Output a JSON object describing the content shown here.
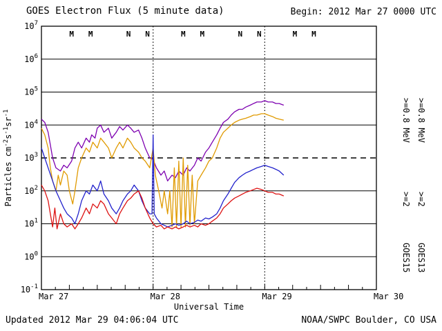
{
  "header": {
    "begin": "Begin: 2012 Mar 27 0000 UTC"
  },
  "footer": {
    "updated": "Updated 2012 Mar 29 04:06:04 UTC",
    "credit": "NOAA/SWPC Boulder, CO USA"
  },
  "chart_data": {
    "type": "line",
    "title": "GOES Electron Flux (5 minute data)",
    "xlabel": "Universal Time",
    "ylabel_parts": [
      [
        "Particles cm",
        false
      ],
      [
        "-2",
        true
      ],
      [
        "s",
        false
      ],
      [
        "-1",
        true
      ],
      [
        "sr",
        false
      ],
      [
        "-1",
        true
      ]
    ],
    "x_ticks": [
      {
        "label": "Mar 27",
        "day": 0
      },
      {
        "label": "Mar 28",
        "day": 1
      },
      {
        "label": "Mar 29",
        "day": 2
      },
      {
        "label": "Mar 30",
        "day": 3
      }
    ],
    "y_exponents": [
      7,
      6,
      5,
      4,
      3,
      2,
      1,
      0,
      -1
    ],
    "xlim_days": [
      0,
      3
    ],
    "ylog_range": [
      -1,
      7
    ],
    "ylim": [
      0.1,
      10000000
    ],
    "grid": true,
    "threshold_exponent": 3,
    "day_boundaries": [
      1,
      2
    ],
    "top_markers": [
      {
        "label": "M",
        "color": "#dd1111",
        "x": 0.27
      },
      {
        "label": "M",
        "color": "#2222cc",
        "x": 0.44
      },
      {
        "label": "N",
        "color": "#dd1111",
        "x": 0.78
      },
      {
        "label": "N",
        "color": "#2222cc",
        "x": 0.95
      },
      {
        "label": "M",
        "color": "#dd1111",
        "x": 1.27
      },
      {
        "label": "M",
        "color": "#2222cc",
        "x": 1.44
      },
      {
        "label": "N",
        "color": "#dd1111",
        "x": 1.78
      },
      {
        "label": "N",
        "color": "#2222cc",
        "x": 1.95
      },
      {
        "label": "M",
        "color": "#dd1111",
        "x": 2.27
      },
      {
        "label": "M",
        "color": "#2222cc",
        "x": 2.44
      }
    ],
    "right_legend": [
      {
        "satellite": "GOES15",
        "energy_high": ">=0.8 MeV",
        "color_high": "#7d00b0",
        "energy_low": ">=2",
        "color_low": "#2222cc"
      },
      {
        "satellite": "GOES13",
        "energy_high": ">=0.8 MeV",
        "color_high": "#e09a00",
        "energy_low": ">=2",
        "color_low": "#dd1111"
      }
    ],
    "series": [
      {
        "name": "GOES15 >=0.8 MeV",
        "color": "#7d00b0",
        "x": [
          0.0,
          0.03,
          0.06,
          0.1,
          0.13,
          0.17,
          0.2,
          0.23,
          0.27,
          0.3,
          0.33,
          0.36,
          0.4,
          0.43,
          0.45,
          0.48,
          0.5,
          0.53,
          0.56,
          0.6,
          0.63,
          0.67,
          0.7,
          0.73,
          0.77,
          0.8,
          0.83,
          0.87,
          0.9,
          0.93,
          0.97,
          1.0,
          1.03,
          1.07,
          1.1,
          1.13,
          1.17,
          1.2,
          1.23,
          1.27,
          1.3,
          1.33,
          1.37,
          1.4,
          1.43,
          1.47,
          1.5,
          1.53,
          1.57,
          1.6,
          1.63,
          1.67,
          1.7,
          1.73,
          1.77,
          1.8,
          1.83,
          1.87,
          1.9,
          1.93,
          1.97,
          2.0,
          2.03,
          2.07,
          2.1,
          2.13,
          2.17
        ],
        "y": [
          15000,
          12000,
          6000,
          1000,
          500,
          400,
          600,
          500,
          800,
          2000,
          3000,
          2000,
          4000,
          3000,
          5000,
          4000,
          8000,
          10000,
          6000,
          8000,
          4000,
          6000,
          9000,
          7000,
          10000,
          8000,
          6000,
          7000,
          4000,
          2000,
          1000,
          900,
          500,
          300,
          400,
          200,
          300,
          250,
          400,
          300,
          500,
          400,
          600,
          1000,
          800,
          1500,
          2000,
          3000,
          5000,
          8000,
          12000,
          15000,
          20000,
          25000,
          30000,
          30000,
          35000,
          40000,
          45000,
          50000,
          50000,
          55000,
          50000,
          50000,
          45000,
          45000,
          40000
        ]
      },
      {
        "name": "GOES13 >=0.8 MeV",
        "color": "#e09a00",
        "x": [
          0.0,
          0.03,
          0.06,
          0.08,
          0.1,
          0.13,
          0.15,
          0.17,
          0.2,
          0.23,
          0.25,
          0.28,
          0.3,
          0.33,
          0.36,
          0.4,
          0.43,
          0.46,
          0.5,
          0.53,
          0.56,
          0.6,
          0.63,
          0.67,
          0.7,
          0.73,
          0.77,
          0.8,
          0.83,
          0.87,
          0.9,
          0.93,
          0.97,
          1.0,
          1.02,
          1.05,
          1.08,
          1.1,
          1.13,
          1.15,
          1.17,
          1.19,
          1.21,
          1.23,
          1.25,
          1.27,
          1.29,
          1.31,
          1.33,
          1.35,
          1.37,
          1.4,
          1.43,
          1.47,
          1.5,
          1.53,
          1.57,
          1.6,
          1.63,
          1.67,
          1.7,
          1.73,
          1.77,
          1.8,
          1.83,
          1.87,
          1.9,
          1.93,
          1.97,
          2.0,
          2.03,
          2.07,
          2.1,
          2.13,
          2.17
        ],
        "y": [
          8000,
          5000,
          2000,
          500,
          200,
          100,
          300,
          150,
          400,
          300,
          100,
          40,
          100,
          500,
          1000,
          2000,
          1500,
          3000,
          2000,
          4000,
          3000,
          2000,
          1000,
          2000,
          3000,
          2000,
          4000,
          3000,
          2000,
          1500,
          1000,
          800,
          500,
          2000,
          300,
          100,
          30,
          100,
          20,
          100,
          8,
          500,
          8,
          800,
          8,
          1000,
          8,
          600,
          9,
          300,
          10,
          200,
          300,
          500,
          800,
          1000,
          2000,
          4000,
          6000,
          8000,
          10000,
          12000,
          14000,
          15000,
          16000,
          18000,
          20000,
          20000,
          22000,
          22000,
          20000,
          18000,
          16000,
          15000,
          14000
        ]
      },
      {
        "name": "GOES15 >=2 MeV",
        "color": "#2222cc",
        "x": [
          0.0,
          0.03,
          0.06,
          0.1,
          0.13,
          0.17,
          0.2,
          0.23,
          0.27,
          0.3,
          0.33,
          0.36,
          0.4,
          0.43,
          0.46,
          0.5,
          0.53,
          0.56,
          0.6,
          0.63,
          0.67,
          0.7,
          0.73,
          0.77,
          0.8,
          0.83,
          0.87,
          0.9,
          0.93,
          0.97,
          0.99,
          1.0,
          1.01,
          1.03,
          1.07,
          1.1,
          1.13,
          1.17,
          1.2,
          1.23,
          1.27,
          1.3,
          1.33,
          1.37,
          1.4,
          1.43,
          1.47,
          1.5,
          1.53,
          1.57,
          1.6,
          1.63,
          1.67,
          1.7,
          1.73,
          1.77,
          1.8,
          1.83,
          1.87,
          1.9,
          1.93,
          1.97,
          2.0,
          2.03,
          2.07,
          2.1,
          2.13,
          2.17
        ],
        "y": [
          2000,
          1000,
          500,
          200,
          100,
          50,
          30,
          20,
          15,
          10,
          20,
          50,
          100,
          80,
          150,
          100,
          200,
          80,
          50,
          30,
          20,
          30,
          50,
          80,
          100,
          150,
          100,
          50,
          30,
          20,
          20,
          5000,
          20,
          15,
          10,
          9,
          8,
          9,
          10,
          9,
          10,
          12,
          10,
          11,
          13,
          12,
          15,
          14,
          16,
          20,
          30,
          50,
          80,
          120,
          180,
          250,
          300,
          350,
          400,
          450,
          500,
          550,
          600,
          550,
          500,
          450,
          400,
          300
        ]
      },
      {
        "name": "GOES13 >=2 MeV",
        "color": "#dd1111",
        "x": [
          0.0,
          0.03,
          0.06,
          0.08,
          0.1,
          0.12,
          0.14,
          0.17,
          0.2,
          0.23,
          0.27,
          0.3,
          0.33,
          0.36,
          0.4,
          0.43,
          0.46,
          0.5,
          0.53,
          0.56,
          0.6,
          0.63,
          0.67,
          0.7,
          0.73,
          0.77,
          0.8,
          0.83,
          0.87,
          0.9,
          0.93,
          0.97,
          1.0,
          1.03,
          1.07,
          1.1,
          1.13,
          1.17,
          1.2,
          1.23,
          1.27,
          1.3,
          1.33,
          1.37,
          1.4,
          1.43,
          1.47,
          1.5,
          1.53,
          1.57,
          1.6,
          1.63,
          1.67,
          1.7,
          1.73,
          1.77,
          1.8,
          1.83,
          1.87,
          1.9,
          1.93,
          1.97,
          2.0,
          2.03,
          2.07,
          2.1,
          2.13,
          2.17
        ],
        "y": [
          150,
          100,
          50,
          20,
          8,
          30,
          7,
          20,
          10,
          8,
          10,
          7,
          10,
          15,
          30,
          20,
          40,
          30,
          50,
          40,
          20,
          15,
          10,
          20,
          30,
          50,
          60,
          80,
          100,
          60,
          30,
          15,
          10,
          8,
          9,
          7,
          8,
          7,
          8,
          7,
          8,
          9,
          8,
          9,
          8,
          10,
          9,
          10,
          12,
          15,
          20,
          30,
          40,
          50,
          60,
          70,
          80,
          90,
          100,
          110,
          120,
          110,
          100,
          90,
          90,
          80,
          80,
          70
        ]
      }
    ]
  }
}
